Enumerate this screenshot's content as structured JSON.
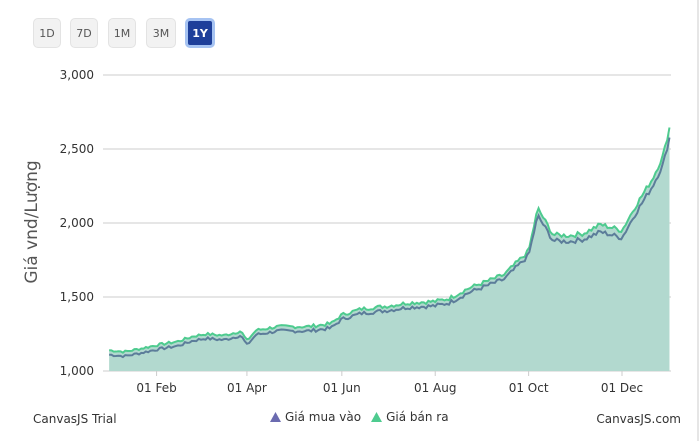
{
  "range_buttons": [
    {
      "label": "1D",
      "active": false
    },
    {
      "label": "7D",
      "active": false
    },
    {
      "label": "1M",
      "active": false
    },
    {
      "label": "3M",
      "active": false
    },
    {
      "label": "1Y",
      "active": true
    }
  ],
  "footer": {
    "trial": "CanvasJS Trial",
    "credit": "CanvasJS.com"
  },
  "colors": {
    "buy": "#5c7d9a",
    "sell": "#4ecb8f",
    "fill": "#b2d9cf",
    "grid": "#cccccc",
    "axis_text": "#333333"
  },
  "chart_data": {
    "type": "area",
    "ylabel": "Giá vnd/Lượng",
    "ylim": [
      1000,
      3000
    ],
    "yticks": [
      "1,000",
      "1,500",
      "2,000",
      "2,500",
      "3,000"
    ],
    "xlabels": [
      "01 Feb",
      "01 Apr",
      "01 Jun",
      "01 Aug",
      "01 Oct",
      "01 Dec"
    ],
    "xtick_days": [
      31,
      90,
      152,
      213,
      274,
      335
    ],
    "x_days": [
      0,
      10,
      20,
      31,
      45,
      55,
      63,
      75,
      86,
      90,
      96,
      110,
      130,
      145,
      152,
      165,
      183,
      195,
      213,
      222,
      235,
      258,
      274,
      280,
      290,
      301,
      310,
      321,
      335,
      343,
      355,
      362,
      367
    ],
    "series": [
      {
        "name": "Giá mua vào",
        "symbol": "triangle",
        "values": [
          1110,
          1100,
          1120,
          1145,
          1170,
          1205,
          1220,
          1210,
          1240,
          1175,
          1245,
          1270,
          1270,
          1290,
          1350,
          1390,
          1410,
          1430,
          1440,
          1460,
          1530,
          1620,
          1780,
          2050,
          1880,
          1875,
          1890,
          1940,
          1900,
          2050,
          2250,
          2400,
          2620
        ]
      },
      {
        "name": "Giá bán ra",
        "symbol": "triangle",
        "values": [
          1140,
          1130,
          1150,
          1175,
          1200,
          1235,
          1250,
          1240,
          1270,
          1205,
          1275,
          1300,
          1300,
          1320,
          1380,
          1420,
          1440,
          1460,
          1470,
          1490,
          1560,
          1650,
          1810,
          2100,
          1920,
          1915,
          1930,
          1990,
          1950,
          2100,
          2300,
          2460,
          2690
        ]
      }
    ]
  }
}
